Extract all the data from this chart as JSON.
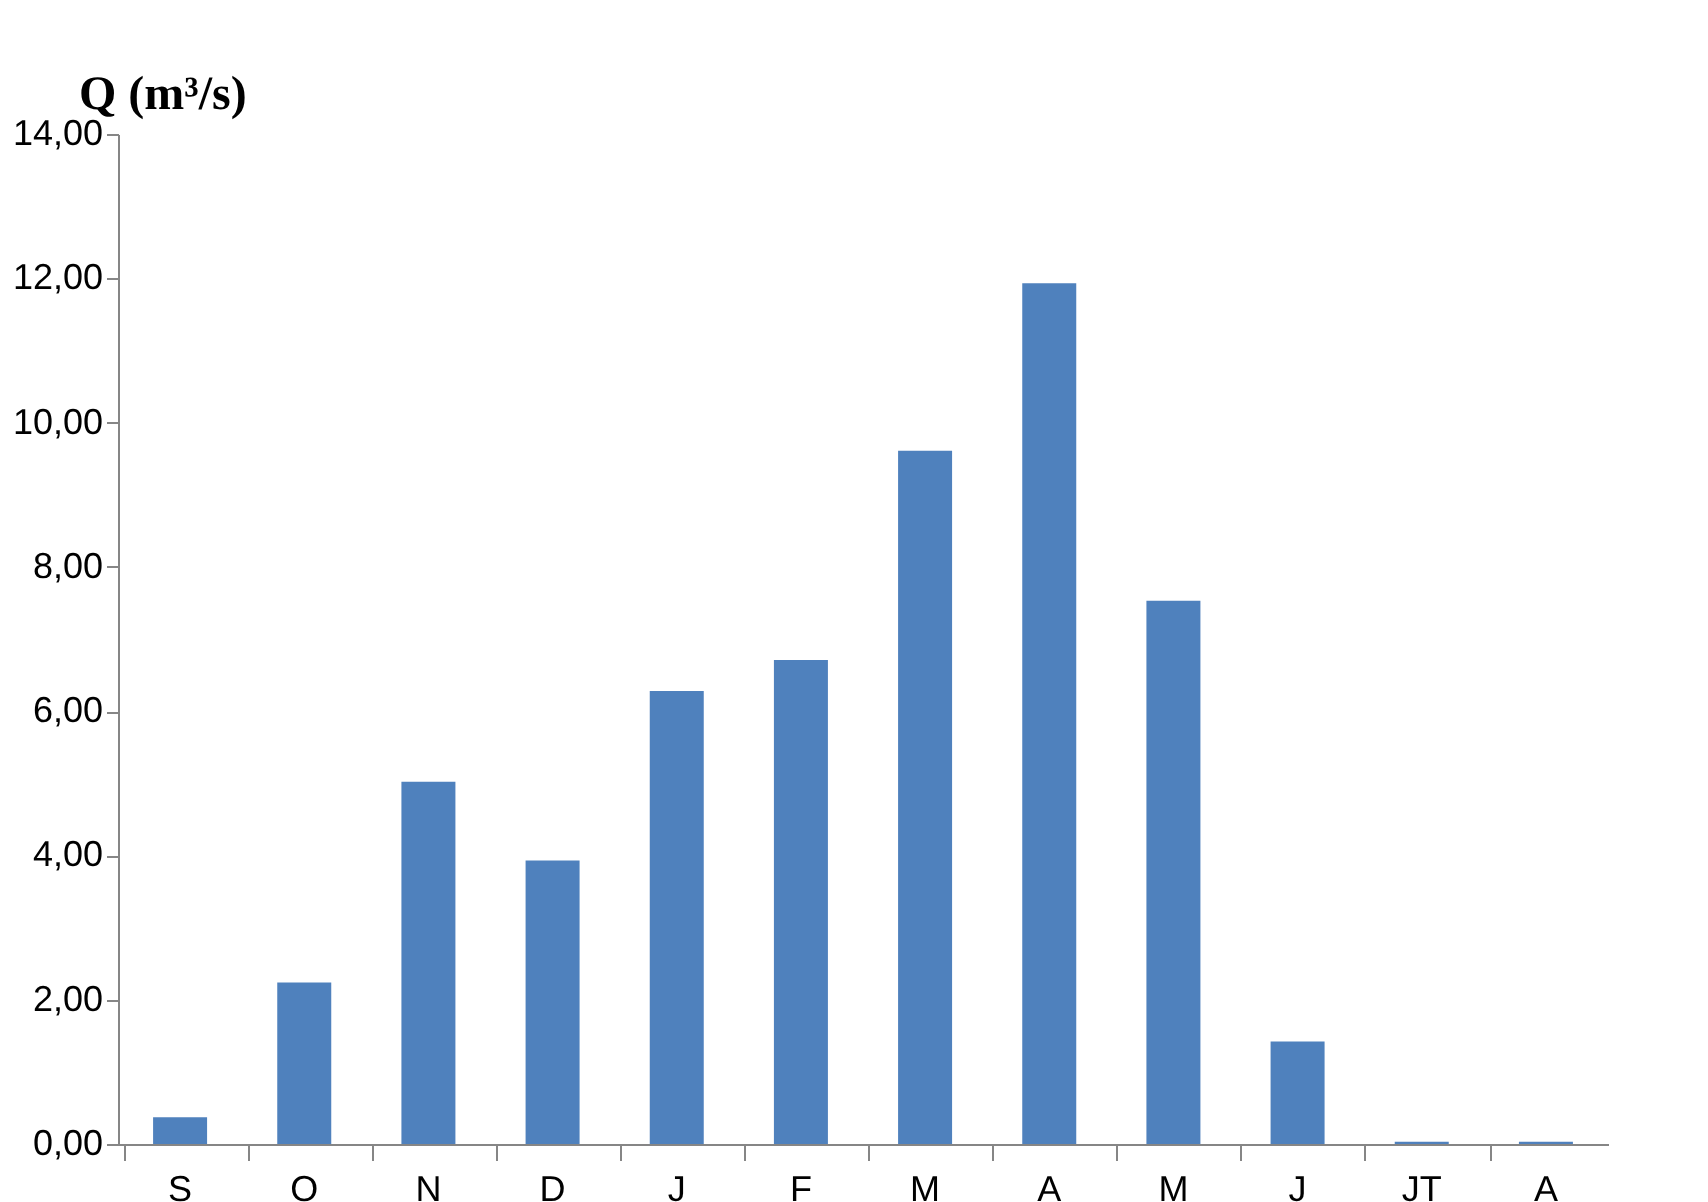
{
  "chart_data": {
    "type": "bar",
    "ylabel": "Q (m³/s)",
    "categories": [
      "S",
      "O",
      "N",
      "D",
      "J",
      "F",
      "M",
      "A",
      "M",
      "J",
      "JT",
      "A"
    ],
    "values": [
      0.37,
      2.24,
      5.02,
      3.93,
      6.28,
      6.71,
      9.61,
      11.93,
      7.53,
      1.42,
      0.03,
      0.03
    ],
    "color": "#4f81bd",
    "ylim": [
      0,
      14
    ],
    "yticks": [
      {
        "value": 0,
        "label": "0,00"
      },
      {
        "value": 2,
        "label": "2,00"
      },
      {
        "value": 4,
        "label": "4,00"
      },
      {
        "value": 6,
        "label": "6,00"
      },
      {
        "value": 8,
        "label": "8,00"
      },
      {
        "value": 10,
        "label": "10,00"
      },
      {
        "value": 12,
        "label": "12,00"
      },
      {
        "value": 14,
        "label": "14,00"
      }
    ],
    "grid": false
  }
}
